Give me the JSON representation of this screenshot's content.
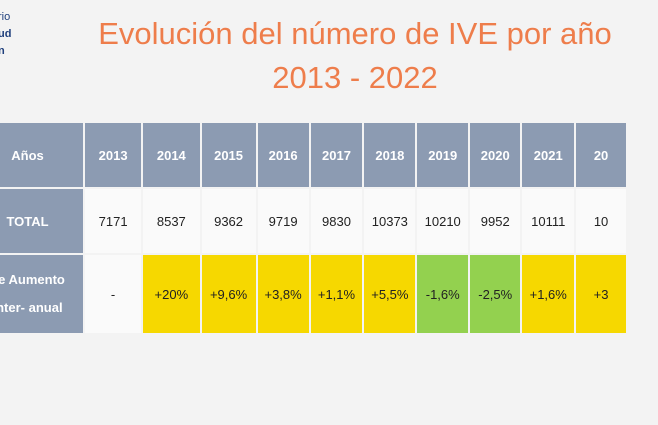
{
  "header": {
    "logo": [
      "rio",
      "ud",
      "n"
    ],
    "title": "Evolución del número de IVE por año",
    "subtitle": "2013 - 2022"
  },
  "table": {
    "rows": [
      [
        "Años",
        "2013",
        "2014",
        "2015",
        "2016",
        "2017",
        "2018",
        "2019",
        "2020",
        "2021",
        "20"
      ],
      [
        "TOTAL",
        "7171",
        "8537",
        "9362",
        "9719",
        "9830",
        "10373",
        "10210",
        "9952",
        "10111",
        "10"
      ],
      [
        [
          "de Aumento",
          "inter- anual"
        ],
        "-",
        "+20%",
        "+9,6%",
        "+3,8%",
        "+1,1%",
        "+5,5%",
        "-1,6%",
        "-2,5%",
        "+1,6%",
        "+3"
      ]
    ]
  }
}
